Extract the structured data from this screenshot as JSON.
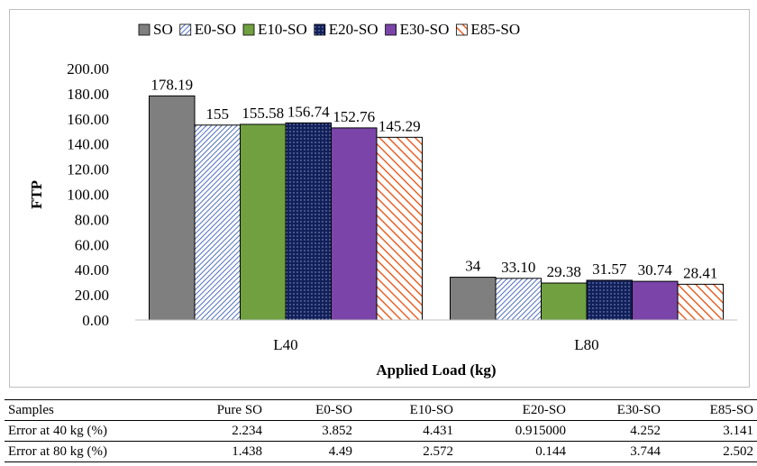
{
  "chart_data": {
    "type": "bar",
    "categories": [
      "L40",
      "L80"
    ],
    "series": [
      {
        "name": "SO",
        "values": [
          178.19,
          34
        ],
        "labels": [
          "178.19",
          "34"
        ],
        "color": "#7f7f7f",
        "pattern": "solid"
      },
      {
        "name": "E0-SO",
        "values": [
          155,
          33.1
        ],
        "labels": [
          "155",
          "33.10"
        ],
        "color": "#4f6fbf",
        "pattern": "diagonal-light"
      },
      {
        "name": "E10-SO",
        "values": [
          155.58,
          29.38
        ],
        "labels": [
          "155.58",
          "29.38"
        ],
        "color": "#70a040",
        "pattern": "solid"
      },
      {
        "name": "E20-SO",
        "values": [
          156.74,
          31.57
        ],
        "labels": [
          "156.74",
          "31.57"
        ],
        "color": "#12205a",
        "pattern": "dots"
      },
      {
        "name": "E30-SO",
        "values": [
          152.76,
          30.74
        ],
        "labels": [
          "152.76",
          "30.74"
        ],
        "color": "#7a44a8",
        "pattern": "solid"
      },
      {
        "name": "E85-SO",
        "values": [
          145.29,
          28.41
        ],
        "labels": [
          "145.29",
          "28.41"
        ],
        "color": "#e8622a",
        "pattern": "diagonal-wide"
      }
    ],
    "yticks": [
      "0.00",
      "20.00",
      "40.00",
      "60.00",
      "80.00",
      "100.00",
      "120.00",
      "140.00",
      "160.00",
      "180.00",
      "200.00"
    ],
    "ylim": [
      0,
      200
    ],
    "xlabel": "Applied Load (kg)",
    "ylabel": "FTP",
    "legend_position": "top",
    "grid": false
  },
  "error_table": {
    "headers": [
      "Samples",
      "Pure SO",
      "E0-SO",
      "E10-SO",
      "E20-SO",
      "E30-SO",
      "E85-SO"
    ],
    "rows": [
      [
        "Error at 40 kg (%)",
        "2.234",
        "3.852",
        "4.431",
        "0.915000",
        "4.252",
        "3.141"
      ],
      [
        "Error at 80 kg (%)",
        "1.438",
        "4.49",
        "2.572",
        "0.144",
        "3.744",
        "2.502"
      ]
    ]
  }
}
